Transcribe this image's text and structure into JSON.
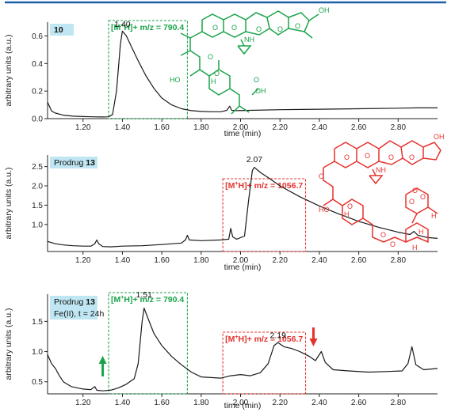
{
  "colors": {
    "top_rule": "#1f5fa8",
    "label_box": "#bfe6f2",
    "trace": "#1a1a1a",
    "green": "#1aa34a",
    "red": "#e5322d",
    "structure_green": "#1aa34a",
    "structure_red": "#e5322d"
  },
  "chart_data": [
    {
      "type": "line",
      "label_prefix": "",
      "label_number": "10",
      "label_line2": "",
      "xlabel": "time (min)",
      "ylabel": "arbitrary units (a.u.)",
      "xlim": [
        1.02,
        3.0
      ],
      "ylim": [
        0.0,
        0.7
      ],
      "xticks": [
        "1.20",
        "1.40",
        "1.60",
        "1.80",
        "2.00",
        "2.20",
        "2.40",
        "2.60",
        "2.80"
      ],
      "yticks": [
        "0.0",
        "0.2",
        "0.4",
        "0.6"
      ],
      "peak_labels": [
        {
          "text": "1.40",
          "x": 1.4,
          "y": 0.665
        }
      ],
      "boxes": [
        {
          "color": "green",
          "x0": 1.33,
          "x1": 1.73,
          "text": "[M+H]+ m/z = 790.4"
        }
      ],
      "arrows": [],
      "series": [
        {
          "values": [
            [
              1.02,
              0.12
            ],
            [
              1.04,
              0.055
            ],
            [
              1.06,
              0.04
            ],
            [
              1.1,
              0.025
            ],
            [
              1.15,
              0.018
            ],
            [
              1.2,
              0.015
            ],
            [
              1.25,
              0.013
            ],
            [
              1.3,
              0.012
            ],
            [
              1.33,
              0.013
            ],
            [
              1.35,
              0.03
            ],
            [
              1.37,
              0.2
            ],
            [
              1.39,
              0.54
            ],
            [
              1.4,
              0.635
            ],
            [
              1.42,
              0.6
            ],
            [
              1.45,
              0.51
            ],
            [
              1.48,
              0.42
            ],
            [
              1.52,
              0.31
            ],
            [
              1.56,
              0.22
            ],
            [
              1.6,
              0.15
            ],
            [
              1.65,
              0.1
            ],
            [
              1.7,
              0.072
            ],
            [
              1.75,
              0.058
            ],
            [
              1.8,
              0.052
            ],
            [
              1.85,
              0.05
            ],
            [
              1.9,
              0.05
            ],
            [
              1.93,
              0.06
            ],
            [
              1.945,
              0.09
            ],
            [
              1.955,
              0.06
            ],
            [
              1.98,
              0.058
            ],
            [
              2.05,
              0.06
            ],
            [
              2.2,
              0.065
            ],
            [
              2.4,
              0.068
            ],
            [
              2.6,
              0.072
            ],
            [
              2.8,
              0.076
            ],
            [
              2.9,
              0.078
            ],
            [
              3.0,
              0.078
            ]
          ]
        }
      ]
    },
    {
      "type": "line",
      "label_prefix": "Prodrug ",
      "label_number": "13",
      "label_line2": "",
      "xlabel": "time (min)",
      "ylabel": "arbitrary units (a.u.)",
      "xlim": [
        1.02,
        3.0
      ],
      "ylim": [
        0.3,
        2.8
      ],
      "xticks": [
        "1.20",
        "1.40",
        "1.60",
        "1.80",
        "2.00",
        "2.20",
        "2.40",
        "2.60",
        "2.80"
      ],
      "yticks": [
        "1.0",
        "1.5",
        "2.0",
        "2.5"
      ],
      "peak_labels": [
        {
          "text": "2.07",
          "x": 2.07,
          "y": 2.62
        }
      ],
      "boxes": [
        {
          "color": "red",
          "x0": 1.91,
          "x1": 2.33,
          "text": "[M+H]+ m/z = 1056.7"
        }
      ],
      "arrows": [],
      "series": [
        {
          "values": [
            [
              1.02,
              0.56
            ],
            [
              1.06,
              0.5
            ],
            [
              1.1,
              0.47
            ],
            [
              1.15,
              0.45
            ],
            [
              1.2,
              0.44
            ],
            [
              1.24,
              0.44
            ],
            [
              1.26,
              0.5
            ],
            [
              1.27,
              0.6
            ],
            [
              1.28,
              0.5
            ],
            [
              1.3,
              0.43
            ],
            [
              1.34,
              0.42
            ],
            [
              1.4,
              0.44
            ],
            [
              1.5,
              0.45
            ],
            [
              1.6,
              0.48
            ],
            [
              1.7,
              0.52
            ],
            [
              1.72,
              0.6
            ],
            [
              1.73,
              0.72
            ],
            [
              1.74,
              0.6
            ],
            [
              1.8,
              0.58
            ],
            [
              1.9,
              0.6
            ],
            [
              1.94,
              0.62
            ],
            [
              1.95,
              0.9
            ],
            [
              1.96,
              0.68
            ],
            [
              1.98,
              0.62
            ],
            [
              2.02,
              0.7
            ],
            [
              2.04,
              1.6
            ],
            [
              2.06,
              2.4
            ],
            [
              2.07,
              2.48
            ],
            [
              2.1,
              2.35
            ],
            [
              2.15,
              2.18
            ],
            [
              2.2,
              2.0
            ],
            [
              2.3,
              1.72
            ],
            [
              2.4,
              1.48
            ],
            [
              2.5,
              1.27
            ],
            [
              2.6,
              1.08
            ],
            [
              2.7,
              0.93
            ],
            [
              2.8,
              0.8
            ],
            [
              2.86,
              0.74
            ],
            [
              2.88,
              0.82
            ],
            [
              2.9,
              0.72
            ],
            [
              2.95,
              0.66
            ],
            [
              3.0,
              0.64
            ]
          ]
        }
      ]
    },
    {
      "type": "line",
      "label_prefix": "Prodrug ",
      "label_number": "13",
      "label_line2": "Fe(II), t = 24h",
      "xlabel": "time (min)",
      "ylabel": "arbitrary units (a.u.)",
      "xlim": [
        1.02,
        3.0
      ],
      "ylim": [
        0.3,
        1.95
      ],
      "xticks": [
        "1.20",
        "1.40",
        "1.60",
        "1.80",
        "2.00",
        "2.20",
        "2.40",
        "2.60",
        "2.80"
      ],
      "yticks": [
        "0.5",
        "1.0",
        "1.5"
      ],
      "peak_labels": [
        {
          "text": "1.51",
          "x": 1.51,
          "y": 1.9
        },
        {
          "text": "2.19",
          "x": 2.19,
          "y": 1.22
        }
      ],
      "boxes": [
        {
          "color": "green",
          "x0": 1.33,
          "x1": 1.73,
          "text": "[M+H]+ m/z = 790.4"
        },
        {
          "color": "red",
          "x0": 1.91,
          "x1": 2.33,
          "text": "[M+H]+ m/z = 1056.7"
        }
      ],
      "arrows": [
        {
          "color": "green",
          "direction": "up",
          "x": 1.3
        },
        {
          "color": "red",
          "direction": "down",
          "x": 2.37
        }
      ],
      "series": [
        {
          "values": [
            [
              1.02,
              0.95
            ],
            [
              1.04,
              0.8
            ],
            [
              1.06,
              0.72
            ],
            [
              1.08,
              0.6
            ],
            [
              1.1,
              0.5
            ],
            [
              1.14,
              0.42
            ],
            [
              1.2,
              0.38
            ],
            [
              1.24,
              0.37
            ],
            [
              1.26,
              0.42
            ],
            [
              1.27,
              0.36
            ],
            [
              1.3,
              0.35
            ],
            [
              1.34,
              0.36
            ],
            [
              1.38,
              0.4
            ],
            [
              1.42,
              0.46
            ],
            [
              1.46,
              0.55
            ],
            [
              1.48,
              0.8
            ],
            [
              1.5,
              1.5
            ],
            [
              1.51,
              1.72
            ],
            [
              1.53,
              1.55
            ],
            [
              1.56,
              1.3
            ],
            [
              1.6,
              1.1
            ],
            [
              1.65,
              0.92
            ],
            [
              1.7,
              0.78
            ],
            [
              1.75,
              0.66
            ],
            [
              1.8,
              0.58
            ],
            [
              1.9,
              0.56
            ],
            [
              1.95,
              0.6
            ],
            [
              2.0,
              0.62
            ],
            [
              2.05,
              0.6
            ],
            [
              2.1,
              0.65
            ],
            [
              2.14,
              0.8
            ],
            [
              2.17,
              1.1
            ],
            [
              2.19,
              1.15
            ],
            [
              2.22,
              1.08
            ],
            [
              2.26,
              1.05
            ],
            [
              2.3,
              1.0
            ],
            [
              2.35,
              0.92
            ],
            [
              2.38,
              0.85
            ],
            [
              2.41,
              1.0
            ],
            [
              2.43,
              0.82
            ],
            [
              2.47,
              0.7
            ],
            [
              2.55,
              0.68
            ],
            [
              2.65,
              0.66
            ],
            [
              2.75,
              0.67
            ],
            [
              2.82,
              0.68
            ],
            [
              2.85,
              0.8
            ],
            [
              2.87,
              1.08
            ],
            [
              2.89,
              0.78
            ],
            [
              2.93,
              0.7
            ],
            [
              3.0,
              0.72
            ]
          ]
        }
      ]
    }
  ]
}
